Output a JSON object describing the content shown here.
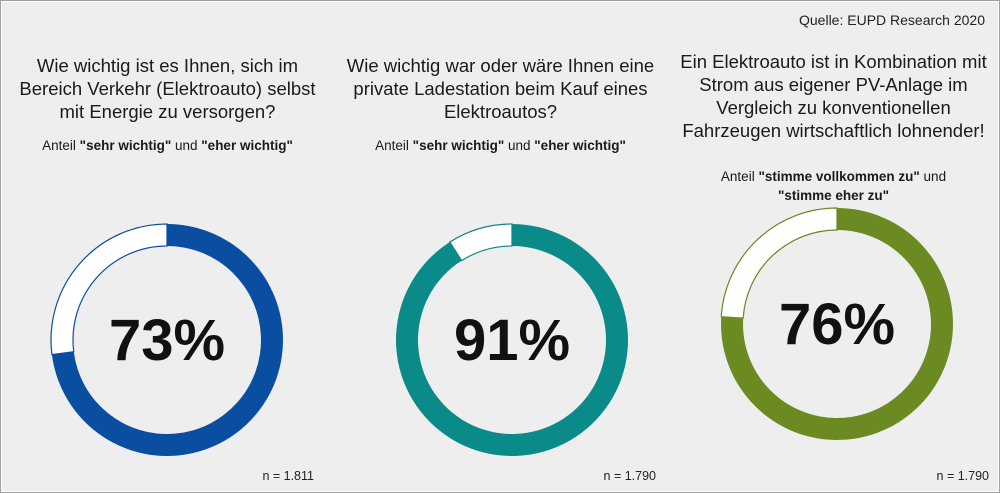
{
  "source": "Quelle: EUPD Research 2020",
  "chart_data": [
    {
      "type": "pie",
      "question": "Wie wichtig ist es Ihnen, sich im Bereich Verkehr (Elektroauto) selbst mit Energie zu versorgen?",
      "sub_prefix": "Anteil ",
      "sub_a": "\"sehr wichtig\"",
      "sub_mid": " und ",
      "sub_b": "\"eher wichtig\"",
      "value": 73,
      "label": "73%",
      "color": "#0a4ea2",
      "n": "n = 1.811"
    },
    {
      "type": "pie",
      "question": "Wie wichtig war oder wäre Ihnen eine private Ladestation beim Kauf eines Elektroautos?",
      "sub_prefix": "Anteil ",
      "sub_a": "\"sehr wichtig\"",
      "sub_mid": " und ",
      "sub_b": "\"eher wichtig\"",
      "value": 91,
      "label": "91%",
      "color": "#0a8a88",
      "n": "n = 1.790"
    },
    {
      "type": "pie",
      "question": "Ein Elektroauto ist in Kombination mit Strom aus eigener PV-Anlage im Vergleich zu konventionellen Fahrzeugen wirtschaftlich lohnender!",
      "sub_prefix": "Anteil ",
      "sub_a": "\"stimme vollkommen zu\"",
      "sub_mid": " und ",
      "sub_b": "\"stimme eher zu\"",
      "value": 76,
      "label": "76%",
      "color": "#6b8a22",
      "n": "n = 1.790"
    }
  ]
}
